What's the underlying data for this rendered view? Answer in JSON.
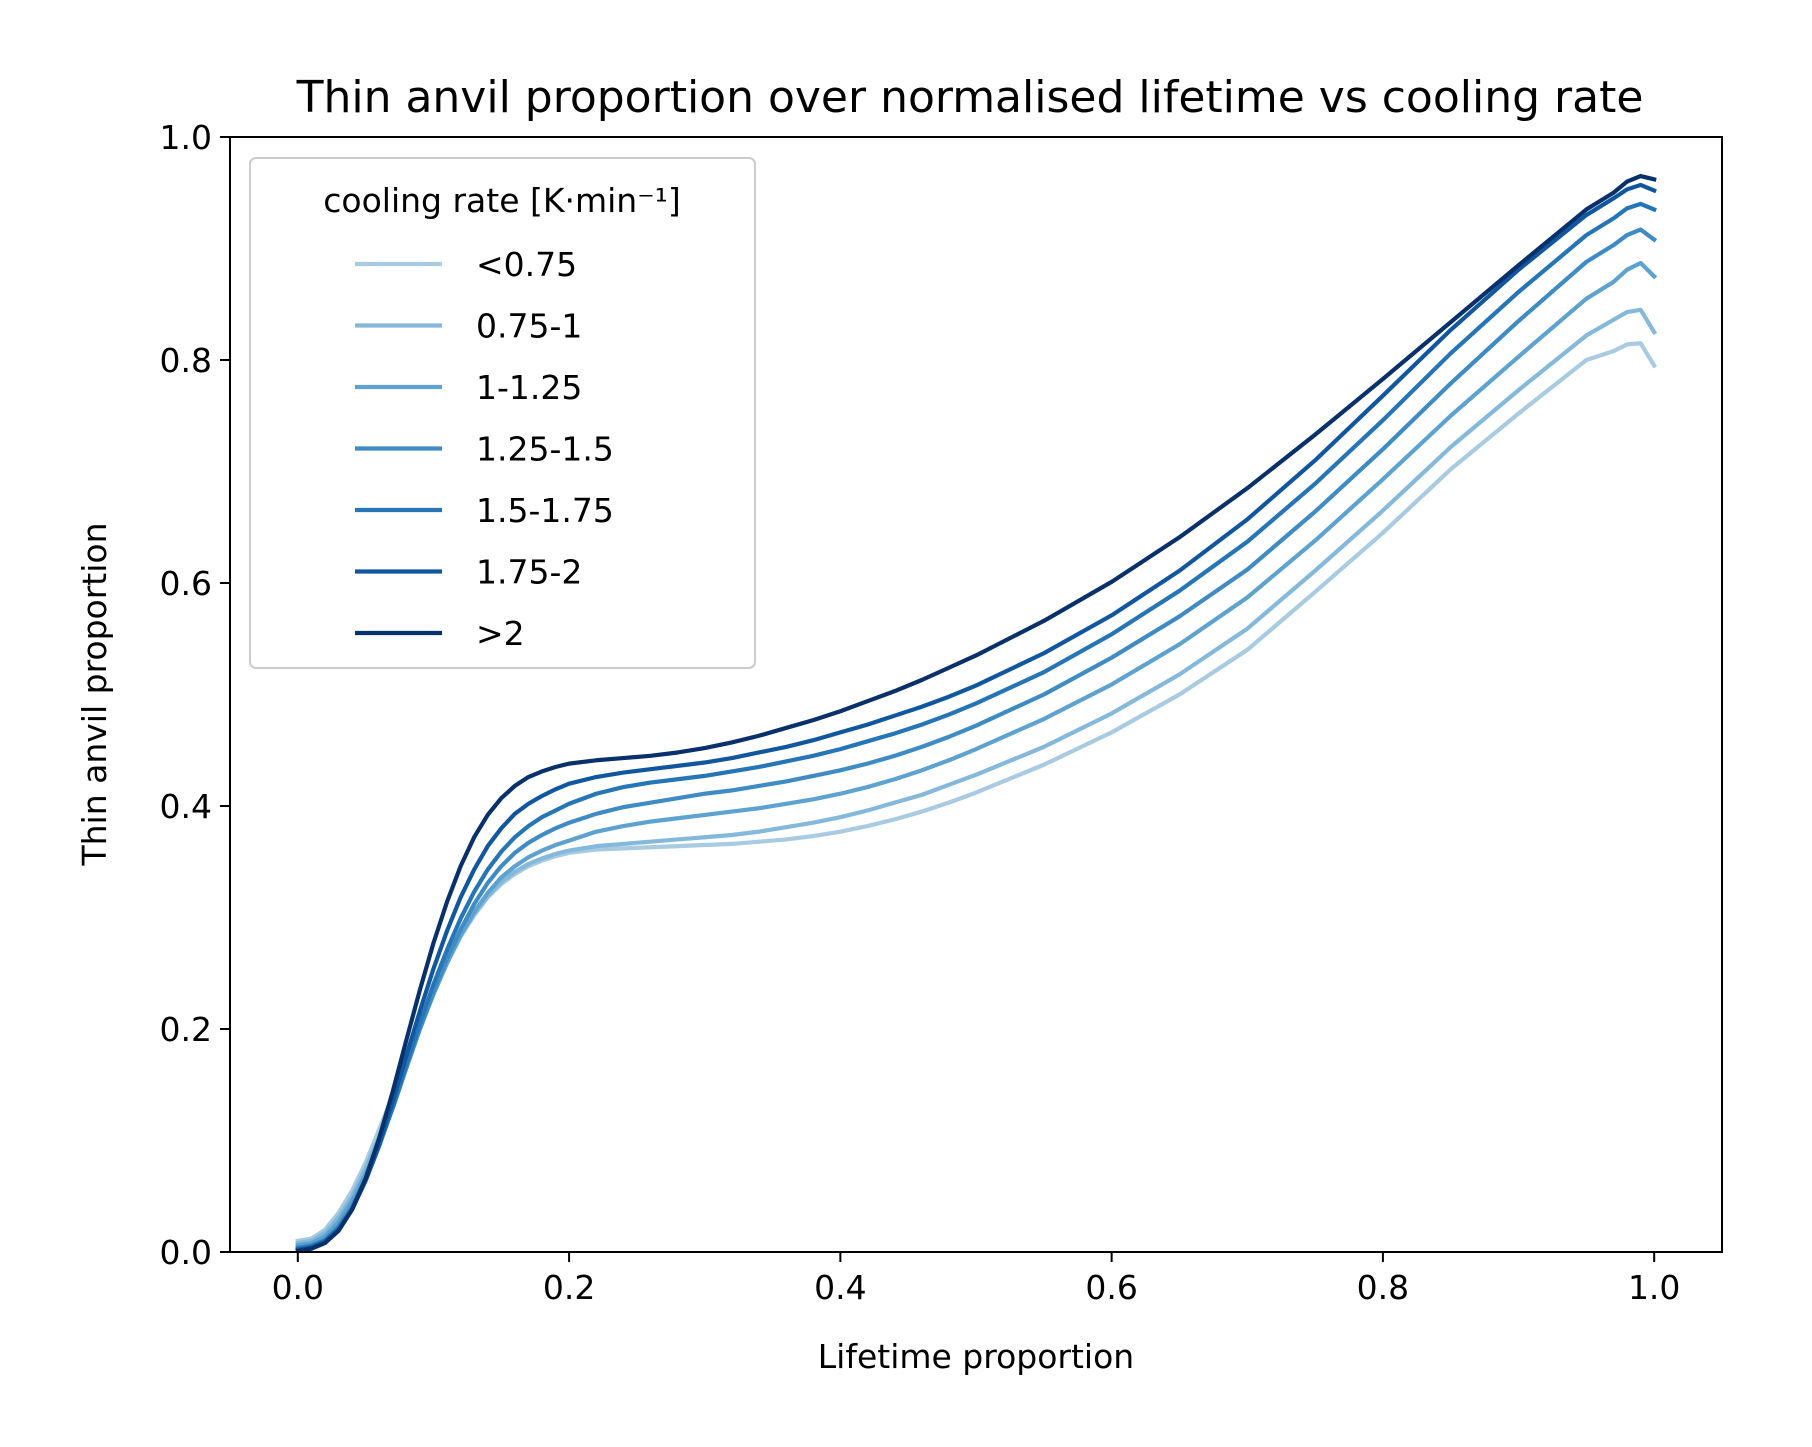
{
  "chart_data": {
    "type": "line",
    "title": "Thin anvil proportion over normalised lifetime vs cooling rate",
    "xlabel": "Lifetime proportion",
    "ylabel": "Thin anvil proportion",
    "xlim": [
      -0.05,
      1.05
    ],
    "ylim": [
      0.0,
      1.0
    ],
    "xticks": [
      "0.0",
      "0.2",
      "0.4",
      "0.6",
      "0.8",
      "1.0"
    ],
    "yticks": [
      "0.0",
      "0.2",
      "0.4",
      "0.6",
      "0.8",
      "1.0"
    ],
    "grid": false,
    "legend": {
      "title": "cooling rate [K·min⁻¹]",
      "placement": "upper-left"
    },
    "x": [
      0.0,
      0.01,
      0.02,
      0.03,
      0.04,
      0.05,
      0.06,
      0.07,
      0.08,
      0.09,
      0.1,
      0.11,
      0.12,
      0.13,
      0.14,
      0.15,
      0.16,
      0.17,
      0.18,
      0.19,
      0.2,
      0.22,
      0.24,
      0.26,
      0.28,
      0.3,
      0.32,
      0.34,
      0.36,
      0.38,
      0.4,
      0.42,
      0.44,
      0.46,
      0.48,
      0.5,
      0.55,
      0.6,
      0.65,
      0.7,
      0.75,
      0.8,
      0.85,
      0.9,
      0.95,
      0.97,
      0.98,
      0.99,
      1.0
    ],
    "series": [
      {
        "name": "<0.75",
        "color": "#a8cbe2",
        "values": [
          0.01,
          0.012,
          0.02,
          0.035,
          0.055,
          0.08,
          0.11,
          0.14,
          0.172,
          0.204,
          0.233,
          0.26,
          0.283,
          0.302,
          0.318,
          0.33,
          0.339,
          0.346,
          0.351,
          0.355,
          0.358,
          0.361,
          0.362,
          0.363,
          0.364,
          0.365,
          0.366,
          0.368,
          0.37,
          0.373,
          0.377,
          0.382,
          0.388,
          0.395,
          0.403,
          0.412,
          0.437,
          0.466,
          0.5,
          0.54,
          0.592,
          0.645,
          0.702,
          0.752,
          0.8,
          0.808,
          0.814,
          0.815,
          0.795
        ]
      },
      {
        "name": "0.75-1",
        "color": "#84b9db",
        "values": [
          0.008,
          0.01,
          0.017,
          0.031,
          0.05,
          0.075,
          0.104,
          0.136,
          0.17,
          0.202,
          0.232,
          0.259,
          0.283,
          0.303,
          0.319,
          0.332,
          0.341,
          0.348,
          0.353,
          0.357,
          0.36,
          0.364,
          0.366,
          0.368,
          0.37,
          0.372,
          0.374,
          0.377,
          0.381,
          0.385,
          0.39,
          0.396,
          0.403,
          0.41,
          0.419,
          0.428,
          0.453,
          0.483,
          0.518,
          0.559,
          0.611,
          0.665,
          0.722,
          0.773,
          0.822,
          0.836,
          0.843,
          0.845,
          0.825
        ]
      },
      {
        "name": "1-1.25",
        "color": "#5ea3d0",
        "values": [
          0.006,
          0.008,
          0.014,
          0.027,
          0.046,
          0.07,
          0.099,
          0.132,
          0.167,
          0.2,
          0.231,
          0.259,
          0.284,
          0.305,
          0.322,
          0.336,
          0.346,
          0.354,
          0.36,
          0.365,
          0.369,
          0.377,
          0.382,
          0.386,
          0.389,
          0.392,
          0.395,
          0.398,
          0.402,
          0.406,
          0.411,
          0.417,
          0.424,
          0.432,
          0.441,
          0.451,
          0.478,
          0.509,
          0.545,
          0.587,
          0.638,
          0.693,
          0.75,
          0.803,
          0.855,
          0.87,
          0.881,
          0.887,
          0.875
        ]
      },
      {
        "name": "1.25-1.5",
        "color": "#3f8cc4",
        "values": [
          0.004,
          0.006,
          0.011,
          0.023,
          0.041,
          0.066,
          0.096,
          0.129,
          0.165,
          0.2,
          0.233,
          0.263,
          0.289,
          0.312,
          0.331,
          0.346,
          0.358,
          0.367,
          0.374,
          0.38,
          0.385,
          0.393,
          0.399,
          0.403,
          0.407,
          0.411,
          0.414,
          0.418,
          0.422,
          0.427,
          0.432,
          0.438,
          0.445,
          0.453,
          0.462,
          0.472,
          0.5,
          0.533,
          0.57,
          0.612,
          0.664,
          0.72,
          0.779,
          0.835,
          0.888,
          0.903,
          0.912,
          0.917,
          0.908
        ]
      },
      {
        "name": "1.5-1.75",
        "color": "#2575b7",
        "values": [
          0.003,
          0.005,
          0.01,
          0.021,
          0.039,
          0.064,
          0.095,
          0.13,
          0.168,
          0.205,
          0.24,
          0.271,
          0.299,
          0.323,
          0.343,
          0.359,
          0.372,
          0.382,
          0.39,
          0.396,
          0.402,
          0.411,
          0.417,
          0.421,
          0.424,
          0.427,
          0.431,
          0.435,
          0.44,
          0.445,
          0.451,
          0.458,
          0.465,
          0.473,
          0.482,
          0.492,
          0.52,
          0.554,
          0.593,
          0.637,
          0.689,
          0.746,
          0.806,
          0.861,
          0.912,
          0.927,
          0.936,
          0.94,
          0.935
        ]
      },
      {
        "name": "1.75-2",
        "color": "#11579f",
        "values": [
          0.002,
          0.004,
          0.009,
          0.02,
          0.038,
          0.064,
          0.097,
          0.135,
          0.176,
          0.216,
          0.254,
          0.288,
          0.318,
          0.343,
          0.364,
          0.38,
          0.393,
          0.402,
          0.409,
          0.415,
          0.42,
          0.426,
          0.43,
          0.433,
          0.436,
          0.439,
          0.443,
          0.448,
          0.453,
          0.459,
          0.466,
          0.473,
          0.481,
          0.489,
          0.498,
          0.508,
          0.537,
          0.571,
          0.611,
          0.657,
          0.71,
          0.768,
          0.827,
          0.881,
          0.93,
          0.945,
          0.953,
          0.957,
          0.952
        ]
      },
      {
        "name": ">2",
        "color": "#08306b",
        "values": [
          0.001,
          0.003,
          0.008,
          0.019,
          0.038,
          0.066,
          0.102,
          0.144,
          0.19,
          0.235,
          0.277,
          0.314,
          0.346,
          0.372,
          0.392,
          0.407,
          0.418,
          0.426,
          0.431,
          0.435,
          0.438,
          0.441,
          0.443,
          0.445,
          0.448,
          0.452,
          0.457,
          0.463,
          0.47,
          0.477,
          0.485,
          0.494,
          0.503,
          0.513,
          0.524,
          0.535,
          0.566,
          0.601,
          0.641,
          0.685,
          0.733,
          0.783,
          0.834,
          0.885,
          0.935,
          0.95,
          0.96,
          0.965,
          0.962
        ]
      }
    ]
  }
}
